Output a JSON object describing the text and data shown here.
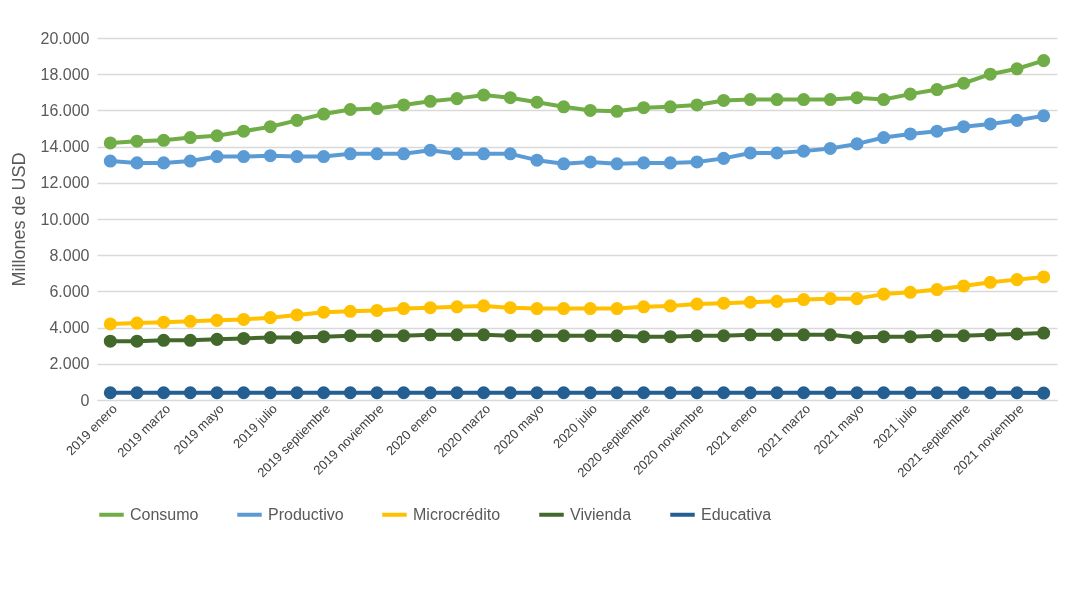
{
  "chart_data": {
    "type": "line",
    "ylabel": "Millones de USD",
    "categories": [
      "2019 enero",
      null,
      "2019 marzo",
      null,
      "2019 mayo",
      null,
      "2019 julio",
      null,
      "2019 septiembre",
      null,
      "2019 noviembre",
      null,
      "2020 enero",
      null,
      "2020 marzo",
      null,
      "2020 mayo",
      null,
      "2020 julio",
      null,
      "2020 septiembre",
      null,
      "2020 noviembre",
      null,
      "2021 enero",
      null,
      "2021 marzo",
      null,
      "2021 mayo",
      null,
      "2021 julio",
      null,
      "2021 septiembre",
      null,
      "2021 noviembre",
      null
    ],
    "series": [
      {
        "name": "Consumo",
        "color": "#70ad47",
        "values": [
          14200,
          14300,
          14350,
          14500,
          14600,
          14850,
          15100,
          15450,
          15800,
          16050,
          16100,
          16300,
          16500,
          16650,
          16850,
          16700,
          16450,
          16200,
          16000,
          15950,
          16150,
          16200,
          16300,
          16550,
          16600,
          16600,
          16600,
          16600,
          16700,
          16600,
          16900,
          17150,
          17500,
          18000,
          18300,
          18750
        ]
      },
      {
        "name": "Productivo",
        "color": "#5b9bd5",
        "values": [
          13200,
          13100,
          13100,
          13200,
          13450,
          13450,
          13500,
          13450,
          13450,
          13600,
          13600,
          13600,
          13800,
          13600,
          13600,
          13600,
          13250,
          13050,
          13150,
          13050,
          13100,
          13100,
          13150,
          13350,
          13650,
          13650,
          13750,
          13900,
          14150,
          14500,
          14700,
          14850,
          15100,
          15250,
          15450,
          15700
        ]
      },
      {
        "name": "Microcrédito",
        "color": "#ffc000",
        "values": [
          4200,
          4250,
          4300,
          4350,
          4400,
          4450,
          4550,
          4700,
          4850,
          4900,
          4950,
          5050,
          5100,
          5150,
          5200,
          5100,
          5050,
          5050,
          5050,
          5050,
          5150,
          5200,
          5300,
          5350,
          5400,
          5450,
          5550,
          5600,
          5600,
          5850,
          5950,
          6100,
          6300,
          6500,
          6650,
          6800
        ]
      },
      {
        "name": "Vivienda",
        "color": "#43682b",
        "values": [
          3250,
          3250,
          3300,
          3300,
          3350,
          3400,
          3450,
          3450,
          3500,
          3550,
          3550,
          3550,
          3600,
          3600,
          3600,
          3550,
          3550,
          3550,
          3550,
          3550,
          3500,
          3500,
          3550,
          3550,
          3600,
          3600,
          3600,
          3600,
          3450,
          3500,
          3500,
          3550,
          3550,
          3600,
          3650,
          3700
        ]
      },
      {
        "name": "Educativa",
        "color": "#255e91",
        "values": [
          400,
          400,
          400,
          400,
          400,
          400,
          400,
          400,
          400,
          400,
          400,
          400,
          400,
          400,
          400,
          400,
          400,
          400,
          400,
          400,
          400,
          400,
          400,
          400,
          400,
          400,
          400,
          400,
          400,
          400,
          400,
          400,
          400,
          400,
          400,
          380
        ]
      }
    ],
    "ylim": [
      0,
      20000
    ],
    "yticks": [
      {
        "value": 0,
        "label": "0"
      },
      {
        "value": 2000,
        "label": "2.000"
      },
      {
        "value": 4000,
        "label": "4.000"
      },
      {
        "value": 6000,
        "label": "6.000"
      },
      {
        "value": 8000,
        "label": "8.000"
      },
      {
        "value": 10000,
        "label": "10.000"
      },
      {
        "value": 12000,
        "label": "12.000"
      },
      {
        "value": 14000,
        "label": "14.000"
      },
      {
        "value": 16000,
        "label": "16.000"
      },
      {
        "value": 18000,
        "label": "18.000"
      },
      {
        "value": 20000,
        "label": "20.000"
      }
    ],
    "grid": "y",
    "legend": "bottom",
    "marker": "circle",
    "line_style": "solid"
  }
}
